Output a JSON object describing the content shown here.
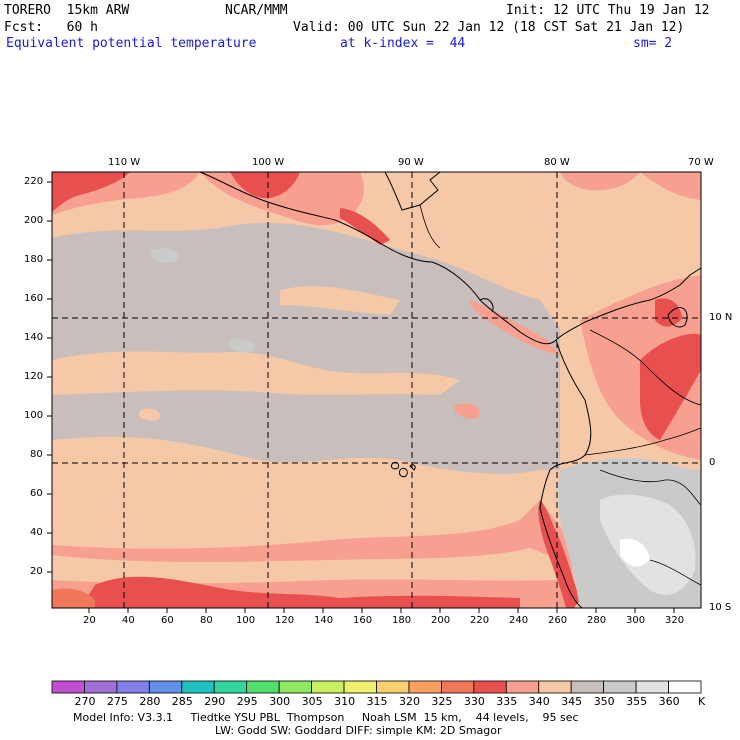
{
  "header": {
    "model": "TORERO  15km ARW",
    "org": "NCAR/MMM",
    "init": "Init: 12 UTC Thu 19 Jan 12",
    "fcst": "Fcst:   60 h",
    "valid": "Valid: 00 UTC Sun 22 Jan 12 (18 CST Sat 21 Jan 12)",
    "field": "Equivalent potential temperature",
    "level": "at k-index =  44",
    "smooth": "sm= 2"
  },
  "axes": {
    "top_labels": [
      "110 W",
      "100 W",
      "90 W",
      "80 W",
      "70 W"
    ],
    "right_labels": [
      "10 N",
      "0",
      "10 S"
    ],
    "left_labels": [
      "220",
      "200",
      "180",
      "160",
      "140",
      "120",
      "100",
      "80",
      "60",
      "40",
      "20"
    ],
    "bottom_labels": [
      "20",
      "40",
      "60",
      "80",
      "100",
      "120",
      "140",
      "160",
      "180",
      "200",
      "220",
      "240",
      "260",
      "280",
      "300",
      "320"
    ]
  },
  "colorbar": {
    "unit": "K",
    "levels": [
      "270",
      "275",
      "280",
      "285",
      "290",
      "295",
      "300",
      "305",
      "310",
      "315",
      "320",
      "325",
      "330",
      "335",
      "340",
      "345",
      "350",
      "355",
      "360"
    ],
    "colors": [
      "#c050d0",
      "#a070d8",
      "#8080e8",
      "#6090e8",
      "#20c0c0",
      "#30d8a0",
      "#50e070",
      "#90e860",
      "#c8f060",
      "#f0f070",
      "#f8d070",
      "#f8a060",
      "#f07858",
      "#e85050",
      "#f8a090",
      "#f5c8a8",
      "#c8bebb",
      "#cacaca",
      "#e2e2e2",
      "#ffffff"
    ]
  },
  "footer": {
    "line1": "Model Info: V3.3.1     Tiedtke YSU PBL  Thompson     Noah LSM  15 km,    44 levels,    95 sec",
    "line2": "LW: Godd SW: Goddard DIFF: simple KM: 2D Smagor"
  }
}
